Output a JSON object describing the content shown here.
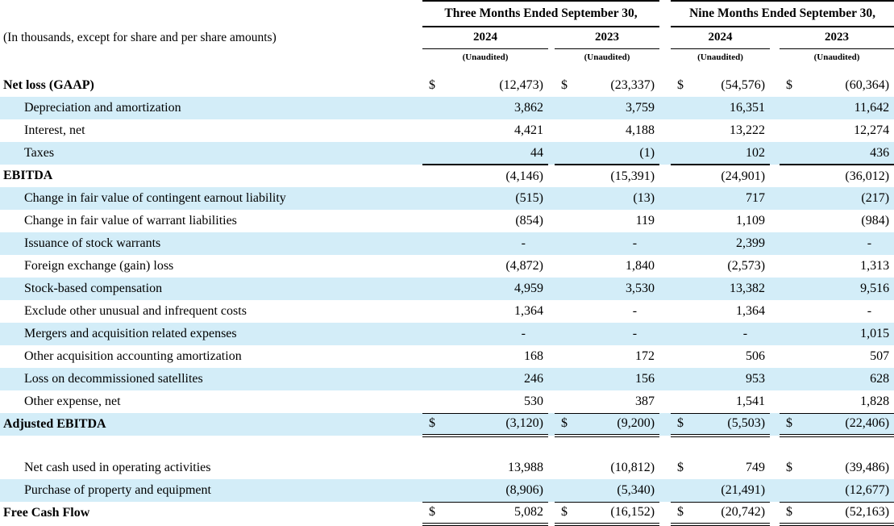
{
  "table": {
    "note": "(In thousands, except for share and per share amounts)",
    "currency": "$",
    "shade_color": "#d3edf8",
    "groups": [
      {
        "label": "Three Months Ended September 30,"
      },
      {
        "label": "Nine Months Ended September 30,"
      }
    ],
    "years": [
      "2024",
      "2023",
      "2024",
      "2023"
    ],
    "unaudited": "(Unaudited)",
    "rows": [
      {
        "label": "Net loss (GAAP)",
        "bold": true,
        "indent": false,
        "shade": false,
        "rule": "none",
        "dollars": [
          true,
          true,
          true,
          true
        ],
        "values": [
          "(12,473)",
          "(23,337)",
          "(54,576)",
          "(60,364)"
        ]
      },
      {
        "label": "Depreciation and amortization",
        "bold": false,
        "indent": true,
        "shade": true,
        "rule": "none",
        "dollars": [
          false,
          false,
          false,
          false
        ],
        "values": [
          "3,862",
          "3,759",
          "16,351",
          "11,642"
        ]
      },
      {
        "label": "Interest, net",
        "bold": false,
        "indent": true,
        "shade": false,
        "rule": "none",
        "dollars": [
          false,
          false,
          false,
          false
        ],
        "values": [
          "4,421",
          "4,188",
          "13,222",
          "12,274"
        ]
      },
      {
        "label": "Taxes",
        "bold": false,
        "indent": true,
        "shade": true,
        "rule": "single",
        "dollars": [
          false,
          false,
          false,
          false
        ],
        "values": [
          "44",
          "(1)",
          "102",
          "436"
        ]
      },
      {
        "label": "EBITDA",
        "bold": true,
        "indent": false,
        "shade": false,
        "rule": "none",
        "dollars": [
          false,
          false,
          false,
          false
        ],
        "values": [
          "(4,146)",
          "(15,391)",
          "(24,901)",
          "(36,012)"
        ]
      },
      {
        "label": "Change in fair value of contingent earnout liability",
        "bold": false,
        "indent": true,
        "shade": true,
        "rule": "none",
        "dollars": [
          false,
          false,
          false,
          false
        ],
        "values": [
          "(515)",
          "(13)",
          "717",
          "(217)"
        ]
      },
      {
        "label": "Change in fair value of warrant liabilities",
        "bold": false,
        "indent": true,
        "shade": false,
        "rule": "none",
        "dollars": [
          false,
          false,
          false,
          false
        ],
        "values": [
          "(854)",
          "119",
          "1,109",
          "(984)"
        ]
      },
      {
        "label": "Issuance of stock warrants",
        "bold": false,
        "indent": true,
        "shade": true,
        "rule": "none",
        "dollars": [
          false,
          false,
          false,
          false
        ],
        "values": [
          "-",
          "-",
          "2,399",
          "-"
        ]
      },
      {
        "label": "Foreign exchange (gain) loss",
        "bold": false,
        "indent": true,
        "shade": false,
        "rule": "none",
        "dollars": [
          false,
          false,
          false,
          false
        ],
        "values": [
          "(4,872)",
          "1,840",
          "(2,573)",
          "1,313"
        ]
      },
      {
        "label": "Stock-based compensation",
        "bold": false,
        "indent": true,
        "shade": true,
        "rule": "none",
        "dollars": [
          false,
          false,
          false,
          false
        ],
        "values": [
          "4,959",
          "3,530",
          "13,382",
          "9,516"
        ]
      },
      {
        "label": "Exclude other unusual and infrequent costs",
        "bold": false,
        "indent": true,
        "shade": false,
        "rule": "none",
        "dollars": [
          false,
          false,
          false,
          false
        ],
        "values": [
          "1,364",
          "-",
          "1,364",
          "-"
        ]
      },
      {
        "label": "Mergers and acquisition related expenses",
        "bold": false,
        "indent": true,
        "shade": true,
        "rule": "none",
        "dollars": [
          false,
          false,
          false,
          false
        ],
        "values": [
          "-",
          "-",
          "-",
          "1,015"
        ]
      },
      {
        "label": "Other acquisition accounting amortization",
        "bold": false,
        "indent": true,
        "shade": false,
        "rule": "none",
        "dollars": [
          false,
          false,
          false,
          false
        ],
        "values": [
          "168",
          "172",
          "506",
          "507"
        ]
      },
      {
        "label": "Loss on decommissioned satellites",
        "bold": false,
        "indent": true,
        "shade": true,
        "rule": "none",
        "dollars": [
          false,
          false,
          false,
          false
        ],
        "values": [
          "246",
          "156",
          "953",
          "628"
        ]
      },
      {
        "label": "Other expense, net",
        "bold": false,
        "indent": true,
        "shade": false,
        "rule": "thin",
        "dollars": [
          false,
          false,
          false,
          false
        ],
        "values": [
          "530",
          "387",
          "1,541",
          "1,828"
        ]
      },
      {
        "label": "Adjusted EBITDA",
        "bold": true,
        "indent": false,
        "shade": true,
        "rule": "double",
        "dollars": [
          true,
          true,
          true,
          true
        ],
        "values": [
          "(3,120)",
          "(9,200)",
          "(5,503)",
          "(22,406)"
        ]
      },
      {
        "spacer": true
      },
      {
        "label": "Net cash used in operating activities",
        "bold": false,
        "indent": true,
        "shade": false,
        "rule": "none",
        "dollars": [
          false,
          false,
          true,
          true
        ],
        "values": [
          "13,988",
          "(10,812)",
          "749",
          "(39,486)"
        ]
      },
      {
        "label": "Purchase of property and equipment",
        "bold": false,
        "indent": true,
        "shade": true,
        "rule": "thin",
        "dollars": [
          false,
          false,
          false,
          false
        ],
        "values": [
          "(8,906)",
          "(5,340)",
          "(21,491)",
          "(12,677)"
        ]
      },
      {
        "label": "Free Cash Flow",
        "bold": true,
        "indent": false,
        "shade": false,
        "rule": "double",
        "dollars": [
          true,
          true,
          true,
          true
        ],
        "values": [
          "5,082",
          "(16,152)",
          "(20,742)",
          "(52,163)"
        ]
      }
    ]
  }
}
